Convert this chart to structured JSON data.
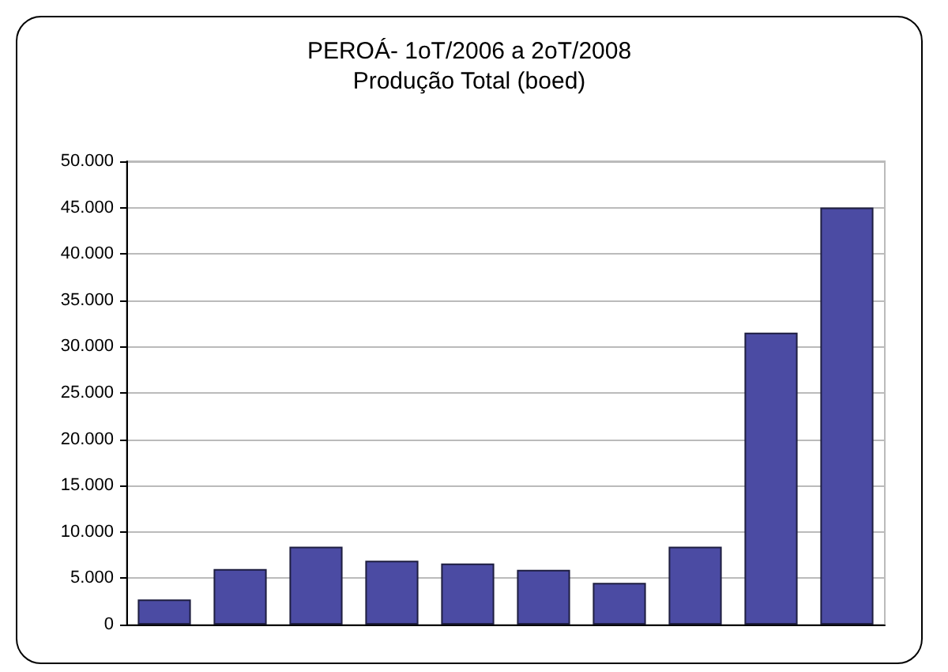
{
  "chart_data": {
    "type": "bar",
    "title": "PEROÁ- 1oT/2006 a 2oT/2008",
    "subtitle": "Produção Total (boed)",
    "categories": [
      null,
      null,
      null,
      null,
      null,
      null,
      null,
      null,
      null,
      null
    ],
    "values": [
      2700,
      6000,
      8400,
      6900,
      6600,
      5900,
      4500,
      8400,
      31500,
      45000
    ],
    "color": "#4b4ba3",
    "ylim": [
      0,
      50000
    ],
    "yticks": [
      {
        "value": 0,
        "label": "0"
      },
      {
        "value": 5000,
        "label": "5.000"
      },
      {
        "value": 10000,
        "label": "10.000"
      },
      {
        "value": 15000,
        "label": "15.000"
      },
      {
        "value": 20000,
        "label": "20.000"
      },
      {
        "value": 25000,
        "label": "25.000"
      },
      {
        "value": 30000,
        "label": "30.000"
      },
      {
        "value": 35000,
        "label": "35.000"
      },
      {
        "value": 40000,
        "label": "40.000"
      },
      {
        "value": 45000,
        "label": "45.000"
      },
      {
        "value": 50000,
        "label": "50.000"
      }
    ],
    "grid": true
  }
}
